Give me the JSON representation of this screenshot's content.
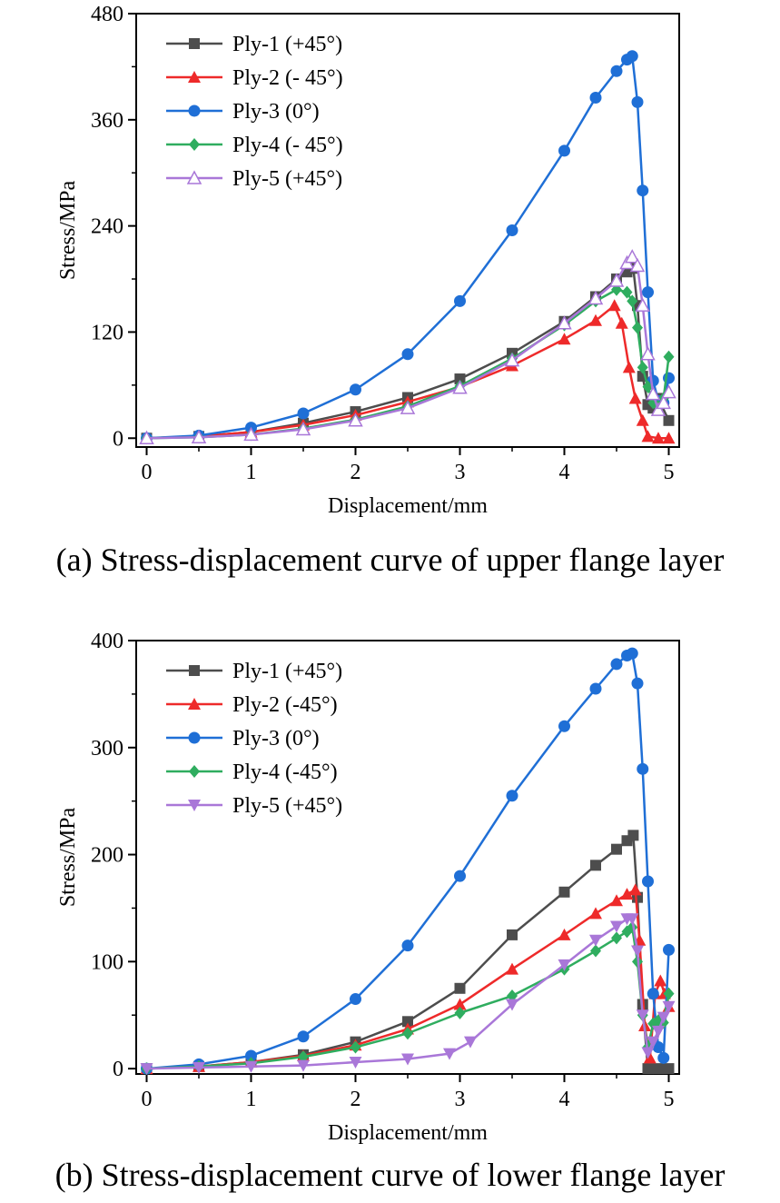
{
  "colors": {
    "ply1": "#4d4d4d",
    "ply2": "#ee2a2a",
    "ply3": "#1f6fd6",
    "ply4": "#2fad5f",
    "ply5": "#a977d8"
  },
  "captions": {
    "a": "(a) Stress-displacement curve of upper flange layer",
    "b": "(b) Stress-displacement curve of lower flange layer"
  },
  "chart_data": [
    {
      "type": "line",
      "xlabel": "Displacement/mm",
      "ylabel": "Stress/MPa",
      "xlim": [
        -0.1,
        5.1
      ],
      "ylim": [
        -10,
        480
      ],
      "xticks": [
        0,
        1,
        2,
        3,
        4,
        5
      ],
      "yticks": [
        0,
        120,
        240,
        360,
        480
      ],
      "legend_position": "top-left",
      "series": [
        {
          "name": "Ply-1 (+45°)",
          "marker": "square",
          "color_key": "ply1",
          "x": [
            0,
            0.5,
            1,
            1.5,
            2,
            2.5,
            3,
            3.5,
            4,
            4.3,
            4.5,
            4.6,
            4.66,
            4.7,
            4.75,
            4.8,
            4.85,
            4.9,
            5.0
          ],
          "y": [
            0,
            2,
            7,
            17,
            30,
            46,
            67,
            96,
            132,
            160,
            180,
            188,
            192,
            150,
            70,
            38,
            34,
            45,
            20
          ]
        },
        {
          "name": "Ply-2 (- 45°)",
          "marker": "triangle",
          "color_key": "ply2",
          "x": [
            0,
            0.5,
            1,
            1.5,
            2,
            2.5,
            3,
            3.5,
            4,
            4.3,
            4.48,
            4.55,
            4.62,
            4.68,
            4.75,
            4.8,
            4.9,
            5.0
          ],
          "y": [
            0,
            2,
            7,
            15,
            26,
            41,
            58,
            82,
            112,
            133,
            150,
            130,
            80,
            45,
            20,
            2,
            0,
            0
          ]
        },
        {
          "name": "Ply-3 (0°)",
          "marker": "circle",
          "color_key": "ply3",
          "x": [
            0,
            0.5,
            1,
            1.5,
            2,
            2.5,
            3,
            3.5,
            4,
            4.3,
            4.5,
            4.6,
            4.65,
            4.7,
            4.75,
            4.8,
            4.85,
            4.9,
            4.95,
            5.0
          ],
          "y": [
            0,
            3,
            12,
            28,
            55,
            95,
            155,
            235,
            325,
            385,
            415,
            428,
            432,
            380,
            280,
            165,
            65,
            42,
            40,
            68
          ]
        },
        {
          "name": "Ply-4 (- 45°)",
          "marker": "diamond",
          "color_key": "ply4",
          "x": [
            0,
            0.5,
            1,
            1.5,
            2,
            2.5,
            3,
            3.5,
            4,
            4.3,
            4.5,
            4.6,
            4.65,
            4.7,
            4.75,
            4.8,
            4.85,
            4.9,
            4.95,
            5.0
          ],
          "y": [
            0,
            1,
            4,
            11,
            21,
            36,
            59,
            90,
            128,
            155,
            168,
            165,
            155,
            125,
            80,
            58,
            40,
            36,
            45,
            92
          ]
        },
        {
          "name": "Ply-5 (+45°)",
          "marker": "open-triangle",
          "color_key": "ply5",
          "x": [
            0,
            0.5,
            1,
            1.5,
            2,
            2.5,
            3,
            3.5,
            4,
            4.3,
            4.5,
            4.6,
            4.65,
            4.7,
            4.75,
            4.8,
            4.85,
            4.9,
            4.95,
            5.0
          ],
          "y": [
            0,
            1,
            4,
            10,
            20,
            34,
            57,
            88,
            130,
            158,
            178,
            198,
            205,
            195,
            150,
            95,
            50,
            32,
            40,
            52
          ]
        }
      ]
    },
    {
      "type": "line",
      "xlabel": "Displacement/mm",
      "ylabel": "Stress/MPa",
      "xlim": [
        -0.1,
        5.1
      ],
      "ylim": [
        -5,
        400
      ],
      "xticks": [
        0,
        1,
        2,
        3,
        4,
        5
      ],
      "yticks": [
        0,
        100,
        200,
        300,
        400
      ],
      "legend_position": "top-left",
      "series": [
        {
          "name": "Ply-1 (+45°)",
          "marker": "square",
          "color_key": "ply1",
          "x": [
            0,
            0.5,
            1,
            1.5,
            2,
            2.5,
            3,
            3.5,
            4,
            4.3,
            4.5,
            4.6,
            4.66,
            4.7,
            4.75,
            4.8,
            4.9,
            5.0
          ],
          "y": [
            0,
            2,
            6,
            13,
            25,
            44,
            75,
            125,
            165,
            190,
            205,
            213,
            218,
            160,
            60,
            0,
            0,
            0
          ]
        },
        {
          "name": "Ply-2 (-45°)",
          "marker": "triangle",
          "color_key": "ply2",
          "x": [
            0,
            0.5,
            1,
            1.5,
            2,
            2.5,
            3,
            3.5,
            4,
            4.3,
            4.5,
            4.6,
            4.68,
            4.72,
            4.77,
            4.82,
            4.87,
            4.92,
            4.96,
            5.0
          ],
          "y": [
            0,
            2,
            6,
            12,
            22,
            37,
            60,
            93,
            125,
            145,
            157,
            163,
            167,
            120,
            40,
            10,
            70,
            82,
            70,
            58
          ]
        },
        {
          "name": "Ply-3 (0°)",
          "marker": "circle",
          "color_key": "ply3",
          "x": [
            0,
            0.5,
            1,
            1.5,
            2,
            2.5,
            3,
            3.5,
            4,
            4.3,
            4.5,
            4.6,
            4.65,
            4.7,
            4.75,
            4.8,
            4.85,
            4.9,
            4.95,
            5.0
          ],
          "y": [
            0,
            4,
            12,
            30,
            65,
            115,
            180,
            255,
            320,
            355,
            378,
            386,
            388,
            360,
            280,
            175,
            70,
            20,
            10,
            111
          ]
        },
        {
          "name": "Ply-4 (-45°)",
          "marker": "diamond",
          "color_key": "ply4",
          "x": [
            0,
            0.5,
            1,
            1.5,
            2,
            2.5,
            3,
            3.5,
            4,
            4.3,
            4.5,
            4.6,
            4.65,
            4.7,
            4.75,
            4.8,
            4.85,
            4.9,
            4.95,
            5.0
          ],
          "y": [
            0,
            2,
            5,
            11,
            20,
            33,
            52,
            68,
            93,
            110,
            122,
            128,
            132,
            100,
            50,
            20,
            42,
            45,
            43,
            70
          ]
        },
        {
          "name": "Ply-5 (+45°)",
          "marker": "down-triangle",
          "color_key": "ply5",
          "x": [
            0,
            0.5,
            1,
            1.5,
            2,
            2.5,
            2.9,
            3.1,
            3.5,
            4,
            4.3,
            4.5,
            4.6,
            4.65,
            4.7,
            4.75,
            4.8,
            4.85,
            4.9,
            4.95,
            5.0
          ],
          "y": [
            0,
            1,
            2,
            3,
            6,
            9,
            14,
            25,
            60,
            97,
            120,
            133,
            140,
            140,
            110,
            50,
            15,
            25,
            35,
            48,
            58
          ]
        }
      ]
    }
  ]
}
